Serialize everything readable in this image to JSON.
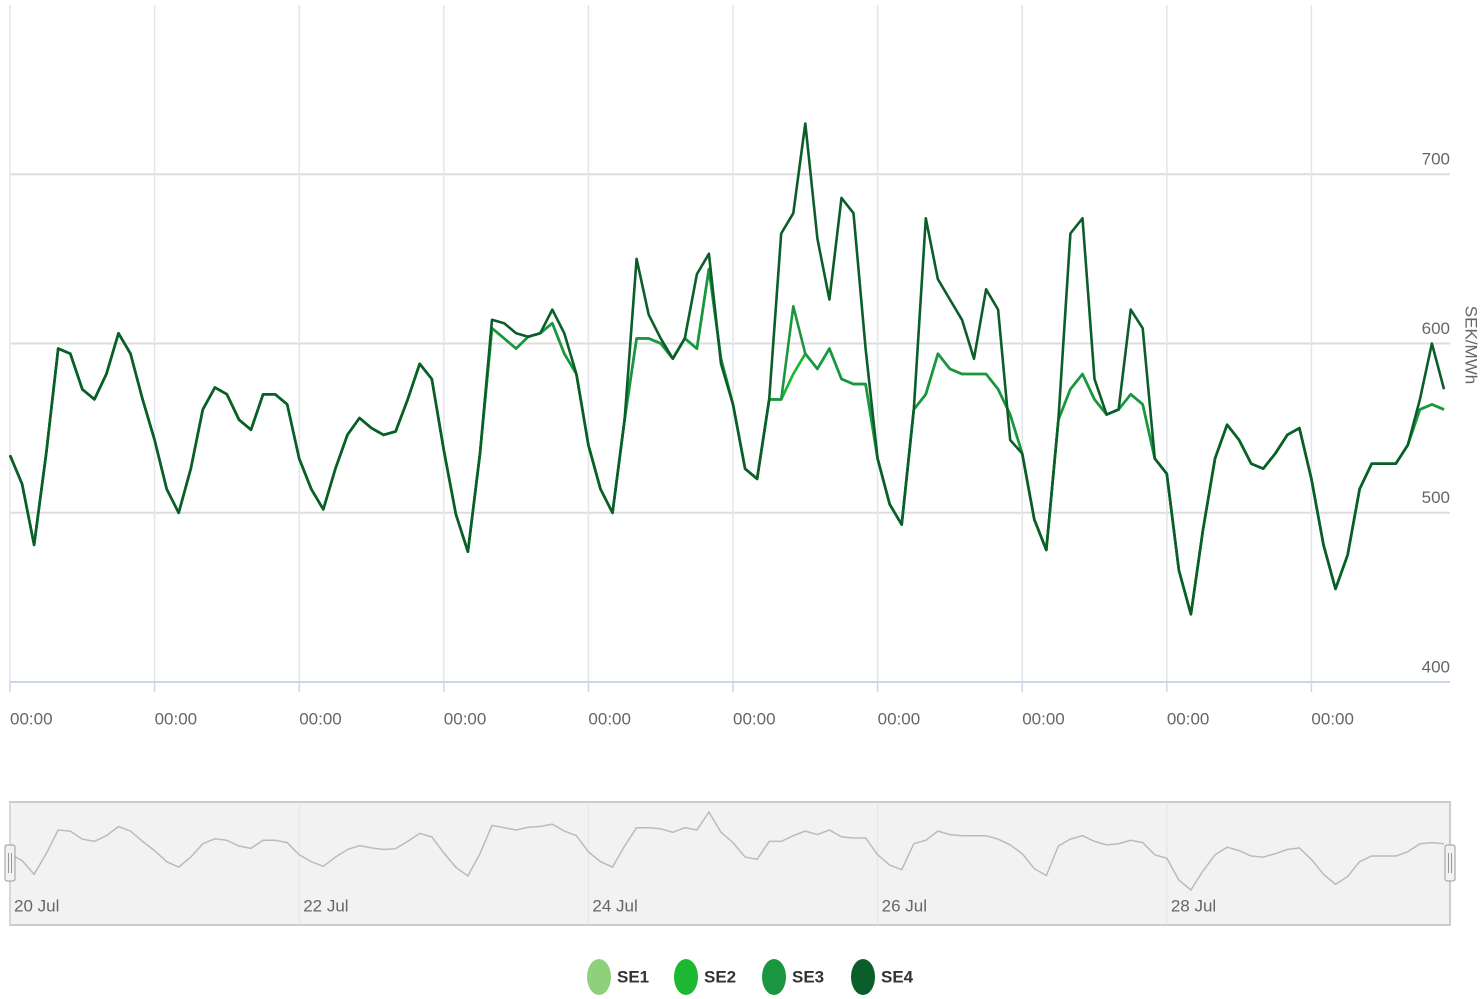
{
  "chart_data": {
    "type": "line",
    "y_axis_label": "SEK/MWh",
    "x": [
      0,
      2,
      4,
      6,
      8,
      10,
      12,
      14,
      16,
      18,
      20,
      22,
      24,
      26,
      28,
      30,
      32,
      34,
      36,
      38,
      40,
      42,
      44,
      46,
      48,
      50,
      52,
      54,
      56,
      58,
      60,
      62,
      64,
      66,
      68,
      70,
      72,
      74,
      76,
      78,
      80,
      82,
      84,
      86,
      88,
      90,
      92,
      94,
      96,
      98,
      100,
      102,
      104,
      106,
      108,
      110,
      112,
      114,
      116,
      118,
      120,
      122,
      124,
      126,
      128,
      130,
      132,
      134,
      136,
      138,
      140,
      142,
      144,
      146,
      148,
      150,
      152,
      154,
      156,
      158,
      160,
      162,
      164,
      166,
      168,
      170,
      172,
      174,
      176,
      178,
      180,
      182,
      184,
      186,
      188,
      190,
      192,
      194,
      196,
      198,
      200,
      202,
      204,
      206,
      208,
      210,
      212,
      214,
      216,
      218,
      220,
      222,
      224,
      226,
      228,
      230,
      232,
      234,
      236,
      238
    ],
    "xlim": [
      0,
      239
    ],
    "xticks": [
      {
        "value": 0,
        "label": "00:00"
      },
      {
        "value": 24,
        "label": "00:00"
      },
      {
        "value": 48,
        "label": "00:00"
      },
      {
        "value": 72,
        "label": "00:00"
      },
      {
        "value": 96,
        "label": "00:00"
      },
      {
        "value": 120,
        "label": "00:00"
      },
      {
        "value": 144,
        "label": "00:00"
      },
      {
        "value": 168,
        "label": "00:00"
      },
      {
        "value": 192,
        "label": "00:00"
      },
      {
        "value": 216,
        "label": "00:00"
      }
    ],
    "ylim": [
      400,
      800
    ],
    "yticks": [
      400,
      500,
      600,
      700
    ],
    "grid": true,
    "series": [
      {
        "name": "SE1",
        "color": "#8fd17a",
        "values": [
          534,
          517,
          481,
          535,
          597,
          594,
          573,
          567,
          582,
          606,
          594,
          567,
          543,
          514,
          500,
          526,
          561,
          574,
          570,
          555,
          549,
          570,
          570,
          564,
          532,
          514,
          502,
          526,
          546,
          556,
          550,
          546,
          548,
          567,
          588,
          579,
          537,
          499,
          477,
          535,
          609,
          603,
          597,
          604,
          606,
          612,
          594,
          582,
          540,
          514,
          500,
          555,
          603,
          603,
          600,
          591,
          603,
          597,
          644,
          591,
          564,
          526,
          520,
          567,
          567,
          582,
          594,
          585,
          597,
          579,
          576,
          576,
          532,
          505,
          493,
          561,
          570,
          594,
          585,
          582,
          582,
          582,
          573,
          558,
          535,
          496,
          478,
          555,
          573,
          582,
          567,
          558,
          561,
          570,
          564,
          532,
          523,
          466,
          440,
          490,
          532,
          552,
          543,
          529,
          526,
          535,
          546,
          550,
          520,
          481,
          455,
          475,
          514,
          529,
          529,
          529,
          540,
          561,
          564,
          561
        ]
      },
      {
        "name": "SE2",
        "color": "#1db832",
        "values": [
          534,
          517,
          481,
          535,
          597,
          594,
          573,
          567,
          582,
          606,
          594,
          567,
          543,
          514,
          500,
          526,
          561,
          574,
          570,
          555,
          549,
          570,
          570,
          564,
          532,
          514,
          502,
          526,
          546,
          556,
          550,
          546,
          548,
          567,
          588,
          579,
          537,
          499,
          477,
          535,
          609,
          603,
          597,
          604,
          606,
          612,
          594,
          582,
          540,
          514,
          500,
          555,
          603,
          603,
          600,
          591,
          603,
          597,
          644,
          591,
          564,
          526,
          520,
          567,
          567,
          582,
          594,
          585,
          597,
          579,
          576,
          576,
          532,
          505,
          493,
          561,
          570,
          594,
          585,
          582,
          582,
          582,
          573,
          558,
          535,
          496,
          478,
          555,
          573,
          582,
          567,
          558,
          561,
          570,
          564,
          532,
          523,
          466,
          440,
          490,
          532,
          552,
          543,
          529,
          526,
          535,
          546,
          550,
          520,
          481,
          455,
          475,
          514,
          529,
          529,
          529,
          540,
          561,
          564,
          561
        ]
      },
      {
        "name": "SE3",
        "color": "#1a9641",
        "values": [
          534,
          517,
          481,
          535,
          597,
          594,
          573,
          567,
          582,
          606,
          594,
          567,
          543,
          514,
          500,
          526,
          561,
          574,
          570,
          555,
          549,
          570,
          570,
          564,
          532,
          514,
          502,
          526,
          546,
          556,
          550,
          546,
          548,
          567,
          588,
          579,
          537,
          499,
          477,
          535,
          609,
          603,
          597,
          604,
          606,
          612,
          594,
          582,
          540,
          514,
          500,
          555,
          603,
          603,
          600,
          591,
          603,
          597,
          644,
          591,
          564,
          526,
          520,
          567,
          567,
          622,
          594,
          585,
          597,
          579,
          576,
          576,
          532,
          505,
          493,
          561,
          570,
          594,
          585,
          582,
          582,
          582,
          573,
          558,
          535,
          496,
          478,
          555,
          573,
          582,
          567,
          558,
          561,
          570,
          564,
          532,
          523,
          466,
          440,
          490,
          532,
          552,
          543,
          529,
          526,
          535,
          546,
          550,
          520,
          481,
          455,
          475,
          514,
          529,
          529,
          529,
          540,
          561,
          564,
          561
        ]
      },
      {
        "name": "SE4",
        "color": "#0b5e2a",
        "values": [
          534,
          517,
          481,
          535,
          597,
          594,
          573,
          567,
          582,
          606,
          594,
          567,
          543,
          514,
          500,
          526,
          561,
          574,
          570,
          555,
          549,
          570,
          570,
          564,
          532,
          514,
          502,
          526,
          546,
          556,
          550,
          546,
          548,
          567,
          588,
          579,
          537,
          499,
          477,
          535,
          614,
          612,
          606,
          604,
          606,
          620,
          606,
          582,
          540,
          514,
          500,
          555,
          650,
          617,
          603,
          591,
          603,
          641,
          653,
          588,
          564,
          526,
          520,
          567,
          665,
          677,
          730,
          662,
          626,
          686,
          677,
          597,
          532,
          505,
          493,
          561,
          674,
          638,
          626,
          614,
          591,
          632,
          620,
          543,
          535,
          496,
          478,
          555,
          665,
          674,
          579,
          558,
          561,
          620,
          609,
          532,
          523,
          466,
          440,
          490,
          532,
          552,
          543,
          529,
          526,
          535,
          546,
          550,
          520,
          481,
          455,
          475,
          514,
          529,
          529,
          529,
          540,
          567,
          600,
          573
        ]
      }
    ],
    "navigator": {
      "xticks": [
        {
          "value": 0,
          "label": "20 Jul"
        },
        {
          "value": 48,
          "label": "22 Jul"
        },
        {
          "value": 96,
          "label": "24 Jul"
        },
        {
          "value": 144,
          "label": "26 Jul"
        },
        {
          "value": 192,
          "label": "28 Jul"
        }
      ]
    }
  }
}
